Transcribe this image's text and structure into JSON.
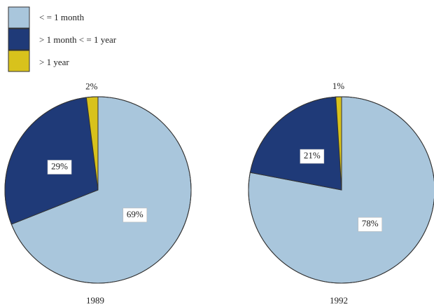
{
  "legend": {
    "labels": [
      "< = 1 month",
      "> 1 month < = 1 year",
      "> 1 year"
    ],
    "colors": [
      "#a9c6dc",
      "#1f3a78",
      "#d8c21c"
    ]
  },
  "chart_data": [
    {
      "type": "pie",
      "title": "1989",
      "values": [
        69,
        29,
        2
      ],
      "value_labels": [
        "69%",
        "29%",
        "2%"
      ]
    },
    {
      "type": "pie",
      "title": "1992",
      "values": [
        78,
        21,
        1
      ],
      "value_labels": [
        "78%",
        "21%",
        "1%"
      ]
    }
  ]
}
